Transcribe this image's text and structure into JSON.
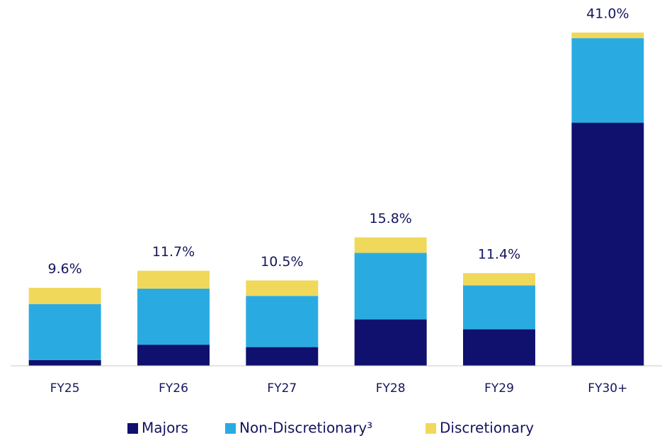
{
  "chart_data": {
    "type": "stacked_bar",
    "categories": [
      "FY25",
      "FY26",
      "FY27",
      "FY28",
      "FY29",
      "FY30+"
    ],
    "series": [
      {
        "name": "Majors",
        "color": "#10106e",
        "values": [
          0.7,
          2.6,
          2.3,
          5.7,
          4.5,
          29.9
        ]
      },
      {
        "name": "Non-Discretionary³",
        "color": "#29abe2",
        "values": [
          6.9,
          6.9,
          6.3,
          8.2,
          5.4,
          10.4
        ]
      },
      {
        "name": "Discretionary",
        "color": "#f0d85a",
        "values": [
          2.0,
          2.2,
          1.9,
          1.9,
          1.5,
          0.7
        ]
      }
    ],
    "totals": [
      9.6,
      11.7,
      10.5,
      15.8,
      11.4,
      41.0
    ],
    "total_labels": [
      "9.6%",
      "11.7%",
      "10.5%",
      "15.8%",
      "11.4%",
      "41.0%"
    ]
  }
}
